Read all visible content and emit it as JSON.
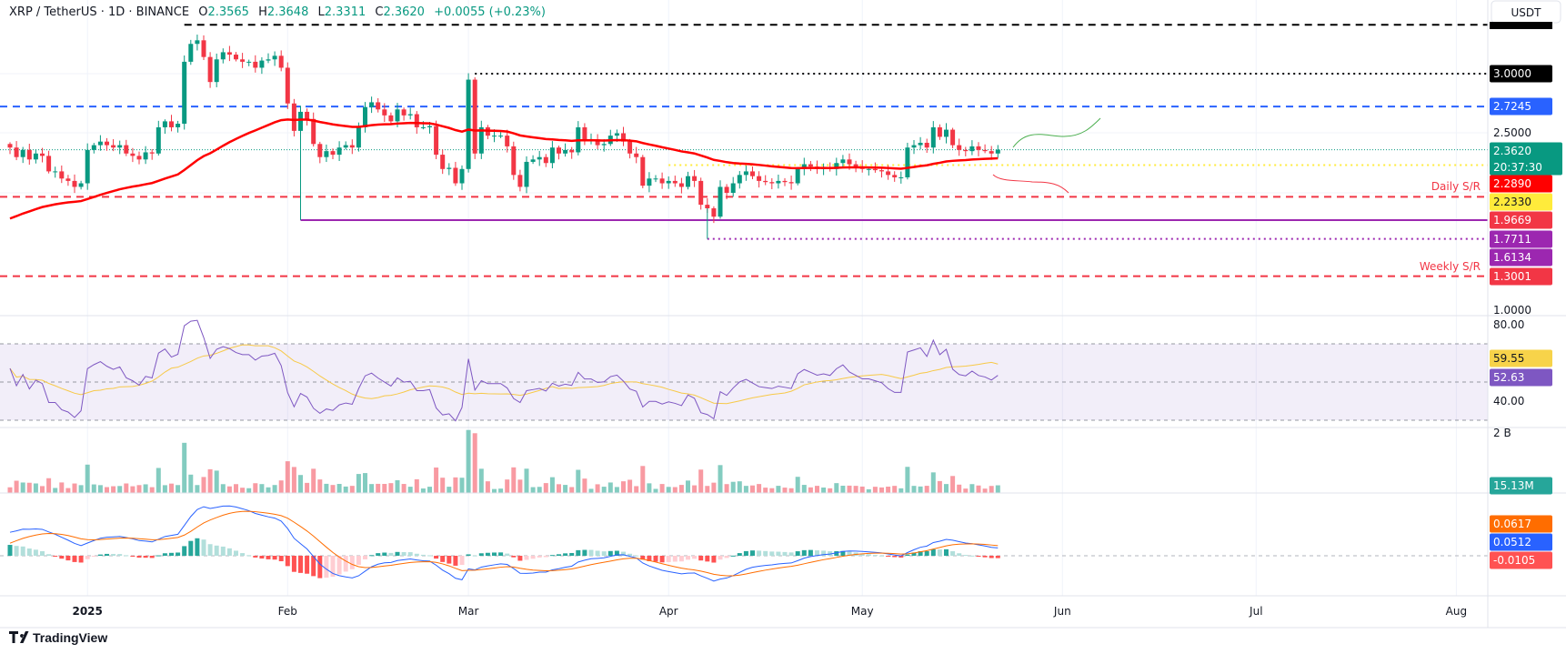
{
  "header": {
    "symbol": "XRP / TetherUS · 1D · BINANCE",
    "open_label": "O",
    "open": "2.3565",
    "high_label": "H",
    "high": "2.3648",
    "low_label": "L",
    "low": "2.3311",
    "close_label": "C",
    "close": "2.3620",
    "change": "+0.0055 (+0.23%)"
  },
  "currency_button": "USDT",
  "branding": "TradingView",
  "colors": {
    "up": "#089981",
    "down": "#f23645",
    "ma": "#ff0000",
    "rsi": "#7e57c2",
    "rsi_ma": "#f7c948",
    "macd": "#2962ff",
    "signal": "#ff6d00"
  },
  "price_axis": {
    "ticks": [
      "2.5000",
      "1.0000"
    ],
    "labels": [
      {
        "value": "3.0000",
        "color": "#000000",
        "text_color": "#ffffff"
      },
      {
        "value": "2.7245",
        "color": "#2962ff",
        "text_color": "#ffffff"
      },
      {
        "value": "2.3620",
        "sub": "20:37:30",
        "color": "#089981",
        "text_color": "#ffffff"
      },
      {
        "value": "2.2890",
        "color": "#ff0000",
        "text_color": "#ffffff"
      },
      {
        "value": "2.2330",
        "color": "#ffeb3b",
        "text_color": "#131722"
      },
      {
        "value": "1.9669",
        "color": "#f23645",
        "text_color": "#ffffff"
      },
      {
        "value": "1.7711",
        "color": "#9c27b0",
        "text_color": "#ffffff"
      },
      {
        "value": "1.6134",
        "color": "#9c27b0",
        "text_color": "#ffffff"
      },
      {
        "value": "1.3001",
        "color": "#f23645",
        "text_color": "#ffffff"
      }
    ]
  },
  "annotations": {
    "daily_sr": "Daily S/R",
    "weekly_sr": "Weekly S/R"
  },
  "rsi": {
    "ticks": [
      "80.00",
      "40.00"
    ],
    "rsi_ma_value": "59.55",
    "rsi_value": "52.63"
  },
  "volume": {
    "tick": "2 B",
    "value": "15.13M"
  },
  "macd": {
    "signal_value": "0.0617",
    "macd_value": "0.0512",
    "hist_value": "-0.0105"
  },
  "time_axis": [
    "2025",
    "Feb",
    "Mar",
    "Apr",
    "May",
    "Jun",
    "Jul",
    "Aug"
  ],
  "chart_data": {
    "type": "candlestick",
    "first_date": "2024-12-20",
    "scale": "linear",
    "ylim": [
      1.0,
      3.4
    ],
    "closes": [
      2.38,
      2.3,
      2.36,
      2.28,
      2.33,
      2.31,
      2.18,
      2.18,
      2.12,
      2.1,
      2.05,
      2.08,
      2.36,
      2.4,
      2.43,
      2.4,
      2.38,
      2.4,
      2.33,
      2.31,
      2.28,
      2.34,
      2.33,
      2.55,
      2.6,
      2.55,
      2.58,
      3.1,
      3.25,
      3.28,
      3.14,
      2.93,
      3.12,
      3.18,
      3.16,
      3.12,
      3.1,
      3.1,
      3.05,
      3.11,
      3.12,
      3.15,
      3.05,
      2.75,
      2.52,
      2.68,
      2.62,
      2.41,
      2.3,
      2.35,
      2.32,
      2.38,
      2.4,
      2.38,
      2.55,
      2.72,
      2.76,
      2.7,
      2.65,
      2.6,
      2.7,
      2.65,
      2.66,
      2.55,
      2.55,
      2.56,
      2.32,
      2.2,
      2.21,
      2.08,
      2.2,
      2.95,
      2.33,
      2.55,
      2.48,
      2.48,
      2.48,
      2.39,
      2.15,
      2.05,
      2.26,
      2.28,
      2.3,
      2.25,
      2.38,
      2.33,
      2.36,
      2.34,
      2.55,
      2.45,
      2.45,
      2.4,
      2.41,
      2.48,
      2.5,
      2.43,
      2.33,
      2.3,
      2.06,
      2.12,
      2.12,
      2.08,
      2.1,
      2.08,
      2.05,
      2.14,
      2.1,
      1.9,
      1.87,
      1.8,
      2.05,
      2.0,
      2.08,
      2.15,
      2.18,
      2.14,
      2.1,
      2.09,
      2.08,
      2.1,
      2.09,
      2.08,
      2.2,
      2.24,
      2.22,
      2.2,
      2.21,
      2.2,
      2.25,
      2.28,
      2.24,
      2.22,
      2.2,
      2.2,
      2.19,
      2.18,
      2.15,
      2.13,
      2.13,
      2.38,
      2.4,
      2.42,
      2.38,
      2.55,
      2.47,
      2.53,
      2.4,
      2.36,
      2.35,
      2.39,
      2.36,
      2.35,
      2.33,
      2.362
    ],
    "levels": [
      {
        "price": 3.41,
        "style": "dashed",
        "color": "#000000",
        "from": "2025-01-16"
      },
      {
        "price": 3.0,
        "style": "dotted",
        "color": "#000000",
        "from": "2025-03-02"
      },
      {
        "price": 2.7245,
        "style": "dashed",
        "color": "#2962ff"
      },
      {
        "price": 2.233,
        "style": "dotted",
        "color": "#ffeb3b",
        "from": "2025-04-01"
      },
      {
        "price": 1.9669,
        "style": "dashed",
        "color": "#f23645",
        "label": "Daily S/R"
      },
      {
        "price": 1.7711,
        "style": "solid",
        "color": "#9c27b0",
        "from": "2025-02-03"
      },
      {
        "price": 1.6134,
        "style": "dotted",
        "color": "#9c27b0",
        "from": "2025-04-07"
      },
      {
        "price": 1.3001,
        "style": "dashed",
        "color": "#f23645",
        "label": "Weekly S/R"
      }
    ],
    "rsi_range": [
      30,
      70
    ]
  }
}
